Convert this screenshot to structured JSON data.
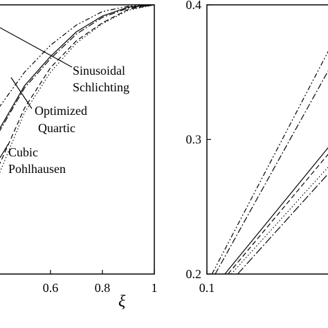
{
  "chart_data": [
    {
      "panel": "left",
      "type": "line",
      "xlabel": "ξ",
      "ylabel": "",
      "xlim": [
        0.4,
        1.0
      ],
      "ylim": [
        0.4,
        1.0
      ],
      "x_ticks": [
        "0.6",
        "0.8",
        "1"
      ],
      "grid": false,
      "annotations": [
        {
          "lines": [
            "Sinusoidal",
            "Schlichting"
          ]
        },
        {
          "lines": [
            "Optimized",
            "Quartic"
          ]
        },
        {
          "lines": [
            "Cubic",
            "Pohlhausen"
          ]
        }
      ],
      "series": [
        {
          "style": "dash-dot-dot",
          "x": [
            0.4,
            0.5,
            0.6,
            0.7,
            0.8,
            0.9,
            1.0
          ],
          "y": [
            0.77,
            0.85,
            0.91,
            0.955,
            0.985,
            0.997,
            1.0
          ]
        },
        {
          "style": "solid",
          "x": [
            0.4,
            0.5,
            0.6,
            0.7,
            0.8,
            0.9,
            1.0
          ],
          "y": [
            0.72,
            0.82,
            0.885,
            0.94,
            0.975,
            0.995,
            1.0
          ]
        },
        {
          "style": "dash-dot",
          "x": [
            0.4,
            0.5,
            0.6,
            0.7,
            0.8,
            0.9,
            1.0
          ],
          "y": [
            0.715,
            0.815,
            0.88,
            0.935,
            0.972,
            0.993,
            1.0
          ]
        },
        {
          "style": "dashed",
          "x": [
            0.4,
            0.5,
            0.6,
            0.7,
            0.8,
            0.9,
            1.0
          ],
          "y": [
            0.64,
            0.77,
            0.86,
            0.92,
            0.96,
            0.99,
            1.0
          ]
        },
        {
          "style": "dotted",
          "x": [
            0.4,
            0.5,
            0.6,
            0.7,
            0.8,
            0.9,
            1.0
          ],
          "y": [
            0.62,
            0.76,
            0.85,
            0.915,
            0.958,
            0.988,
            1.0
          ]
        }
      ]
    },
    {
      "panel": "right",
      "type": "line",
      "xlabel": "",
      "ylabel": "",
      "xlim": [
        0.1,
        0.3
      ],
      "ylim": [
        0.2,
        0.4
      ],
      "x_ticks": [
        "0.1"
      ],
      "y_ticks": [
        "0.2",
        "0.3",
        "0.4"
      ],
      "grid": false,
      "series": [
        {
          "style": "dash-dot-dot",
          "x": [
            0.108,
            0.3
          ],
          "y": [
            0.2,
            0.375
          ]
        },
        {
          "style": "dash-dot",
          "x": [
            0.113,
            0.3
          ],
          "y": [
            0.2,
            0.36
          ]
        },
        {
          "style": "solid",
          "x": [
            0.128,
            0.3
          ],
          "y": [
            0.2,
            0.3
          ]
        },
        {
          "style": "dashed",
          "x": [
            0.133,
            0.3
          ],
          "y": [
            0.2,
            0.295
          ]
        },
        {
          "style": "dotted",
          "x": [
            0.138,
            0.3
          ],
          "y": [
            0.2,
            0.285
          ]
        },
        {
          "style": "dash-dot-long",
          "x": [
            0.148,
            0.3
          ],
          "y": [
            0.2,
            0.28
          ]
        }
      ]
    }
  ],
  "colors": {
    "ink": "#000000",
    "background": "#ffffff"
  }
}
